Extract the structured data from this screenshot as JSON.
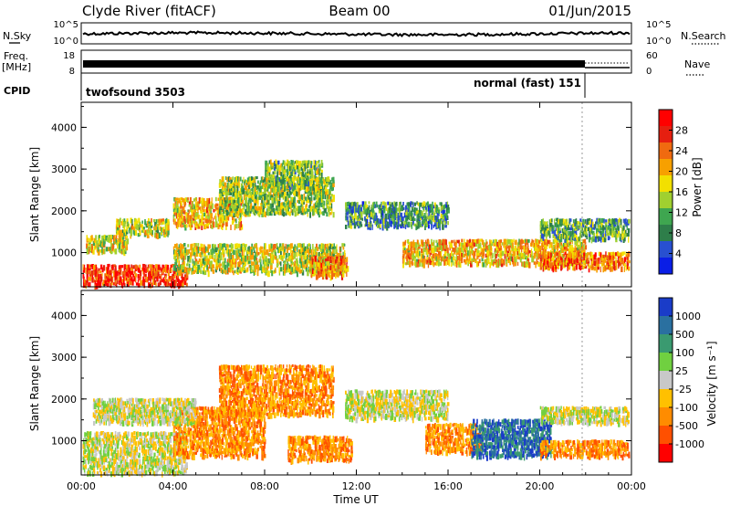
{
  "header": {
    "title": "Clyde River (fitACF)",
    "beam": "Beam 00",
    "date": "01/Jun/2015"
  },
  "strip_labels": {
    "nsky": "N.Sky",
    "nsearch": "N.Search",
    "freq": "Freq.",
    "freq_unit": "[MHz]",
    "nave": "Nave",
    "cpid": "CPID"
  },
  "strip_ticks": {
    "noise_left": [
      "10^5",
      "10^0"
    ],
    "noise_right": [
      "10^5",
      "10^0"
    ],
    "freq_left": [
      "18",
      "8"
    ],
    "freq_right": [
      "60",
      "0"
    ]
  },
  "cpid_programs": [
    {
      "label": "twofsound 3503",
      "start_hour": 0,
      "end_hour": 21.85
    },
    {
      "label": "normal (fast) 151",
      "start_hour": 21.85,
      "end_hour": 24
    }
  ],
  "chart_data": [
    {
      "type": "heatmap",
      "name": "power",
      "ylabel": "Slant Range [km]",
      "ylim": [
        180,
        4600
      ],
      "yticks": [
        1000,
        2000,
        3000,
        4000
      ],
      "xlim": [
        0,
        24
      ],
      "colorbar": {
        "label": "Power [dB]",
        "ticks": [
          "28",
          "24",
          "20",
          "16",
          "12",
          "8",
          "4"
        ],
        "colors": [
          "#0a1ee6",
          "#2850d0",
          "#2e7e4a",
          "#3fa650",
          "#a0d030",
          "#f2e000",
          "#f7a000",
          "#f06a10",
          "#e61f10",
          "#ff0000"
        ]
      },
      "echo_regions": [
        {
          "t": [
            0,
            4.6
          ],
          "range": [
            200,
            700
          ],
          "level": 0.85
        },
        {
          "t": [
            0.2,
            2.0
          ],
          "range": [
            1000,
            1400
          ],
          "level": 0.55
        },
        {
          "t": [
            1.5,
            3.8
          ],
          "range": [
            1400,
            1800
          ],
          "level": 0.5
        },
        {
          "t": [
            4.0,
            7.0
          ],
          "range": [
            1600,
            2300
          ],
          "level": 0.6
        },
        {
          "t": [
            6.0,
            11.0
          ],
          "range": [
            1900,
            2800
          ],
          "level": 0.45
        },
        {
          "t": [
            8.0,
            10.5
          ],
          "range": [
            2500,
            3200
          ],
          "level": 0.4
        },
        {
          "t": [
            4.0,
            11.5
          ],
          "range": [
            500,
            1200
          ],
          "level": 0.5
        },
        {
          "t": [
            10.0,
            11.6
          ],
          "range": [
            400,
            900
          ],
          "level": 0.7
        },
        {
          "t": [
            11.5,
            16.0
          ],
          "range": [
            1600,
            2200
          ],
          "level": 0.3
        },
        {
          "t": [
            14.0,
            22.0
          ],
          "range": [
            700,
            1300
          ],
          "level": 0.6
        },
        {
          "t": [
            20.0,
            24.0
          ],
          "range": [
            1300,
            1800
          ],
          "level": 0.35
        },
        {
          "t": [
            20.0,
            24.0
          ],
          "range": [
            600,
            1000
          ],
          "level": 0.75
        }
      ]
    },
    {
      "type": "heatmap",
      "name": "velocity",
      "xlabel": "Time UT",
      "ylabel": "Slant Range [km]",
      "ylim": [
        180,
        4600
      ],
      "yticks": [
        1000,
        2000,
        3000,
        4000
      ],
      "xlim": [
        0,
        24
      ],
      "xticks": [
        "00:00",
        "04:00",
        "08:00",
        "12:00",
        "16:00",
        "20:00",
        "00:00"
      ],
      "colorbar": {
        "label": "Velocity [m s⁻¹]",
        "ticks": [
          "1000",
          "500",
          "100",
          "25",
          "-25",
          "-100",
          "-500",
          "-1000"
        ],
        "colors": [
          "#1a3cc8",
          "#2a70a0",
          "#3a9a70",
          "#70d040",
          "#c8c8c8",
          "#ffc000",
          "#ff8c00",
          "#ff5000",
          "#ff0000"
        ]
      },
      "echo_regions": [
        {
          "t": [
            0,
            4.6
          ],
          "range": [
            200,
            1200
          ],
          "level": "grey"
        },
        {
          "t": [
            4.0,
            8.0
          ],
          "range": [
            600,
            1800
          ],
          "level": "orange"
        },
        {
          "t": [
            6.0,
            11.0
          ],
          "range": [
            1600,
            2800
          ],
          "level": "orange"
        },
        {
          "t": [
            0.5,
            5.0
          ],
          "range": [
            1400,
            2000
          ],
          "level": "grey"
        },
        {
          "t": [
            9.0,
            11.8
          ],
          "range": [
            500,
            1100
          ],
          "level": "orange"
        },
        {
          "t": [
            11.5,
            16.0
          ],
          "range": [
            1500,
            2200
          ],
          "level": "grey"
        },
        {
          "t": [
            15.0,
            17.5
          ],
          "range": [
            700,
            1400
          ],
          "level": "orange"
        },
        {
          "t": [
            17.0,
            20.5
          ],
          "range": [
            600,
            1500
          ],
          "level": "blue"
        },
        {
          "t": [
            20.0,
            24.0
          ],
          "range": [
            600,
            1000
          ],
          "level": "orange"
        },
        {
          "t": [
            20.0,
            24.0
          ],
          "range": [
            1400,
            1800
          ],
          "level": "grey"
        }
      ]
    }
  ]
}
